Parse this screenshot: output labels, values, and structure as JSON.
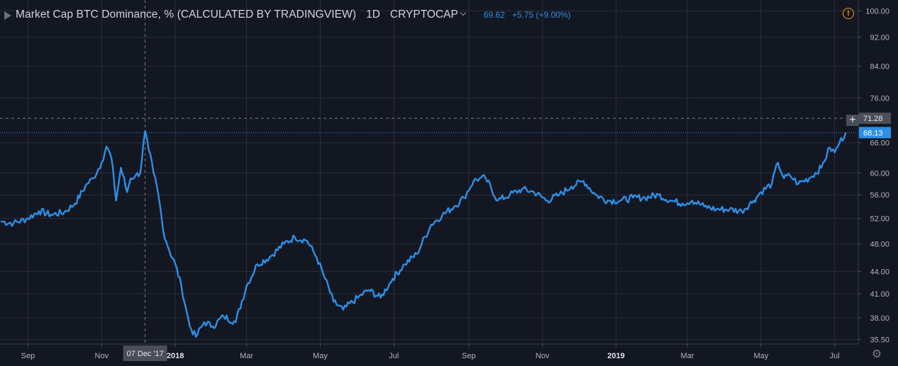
{
  "legend": {
    "title": "Market Cap BTC Dominance, % (CALCULATED BY TRADINGVIEW)",
    "interval": "1D",
    "symbol": "CRYPTOCAP",
    "value": "69.62",
    "change": "+5.75 (+9.00%)"
  },
  "crosshair": {
    "date_label": "07 Dec '17",
    "price_label": "71.28"
  },
  "last_price_label": "68.13",
  "colors": {
    "background": "#131722",
    "grid": "#2a2e39",
    "line": "#2d8fe6",
    "price_tag": "#2d8fe6",
    "crosshair_tag": "#4a4e59",
    "warning": "#f7931a"
  },
  "icons": {
    "warning": "exclamation-circle-icon",
    "add": "plus-icon",
    "settings": "gear-icon"
  },
  "chart_data": {
    "type": "line",
    "scale": "log",
    "grid": true,
    "price_ticks": [
      "100.00",
      "92.00",
      "84.00",
      "76.00",
      "66.00",
      "60.00",
      "56.00",
      "52.00",
      "48.00",
      "44.00",
      "41.00",
      "38.00",
      "35.50"
    ],
    "time_ticks": [
      {
        "label": "Sep",
        "date": "2017-09-01",
        "bold": false
      },
      {
        "label": "Nov",
        "date": "2017-11-01",
        "bold": false
      },
      {
        "label": "2018",
        "date": "2018-01-01",
        "bold": true
      },
      {
        "label": "Mar",
        "date": "2018-03-01",
        "bold": false
      },
      {
        "label": "May",
        "date": "2018-05-01",
        "bold": false
      },
      {
        "label": "Jul",
        "date": "2018-07-01",
        "bold": false
      },
      {
        "label": "Sep",
        "date": "2018-09-01",
        "bold": false
      },
      {
        "label": "Nov",
        "date": "2018-11-01",
        "bold": false
      },
      {
        "label": "2019",
        "date": "2019-01-01",
        "bold": true
      },
      {
        "label": "Mar",
        "date": "2019-03-01",
        "bold": false
      },
      {
        "label": "May",
        "date": "2019-05-01",
        "bold": false
      },
      {
        "label": "Jul",
        "date": "2019-07-01",
        "bold": false
      }
    ],
    "x": [
      "2017-08-10",
      "2017-08-20",
      "2017-09-01",
      "2017-09-10",
      "2017-09-20",
      "2017-10-01",
      "2017-10-10",
      "2017-10-20",
      "2017-10-25",
      "2017-11-01",
      "2017-11-05",
      "2017-11-09",
      "2017-11-13",
      "2017-11-17",
      "2017-11-22",
      "2017-11-25",
      "2017-11-29",
      "2017-12-03",
      "2017-12-07",
      "2017-12-10",
      "2017-12-14",
      "2017-12-18",
      "2017-12-22",
      "2017-12-27",
      "2018-01-01",
      "2018-01-06",
      "2018-01-10",
      "2018-01-13",
      "2018-01-18",
      "2018-01-25",
      "2018-02-01",
      "2018-02-10",
      "2018-02-20",
      "2018-03-01",
      "2018-03-10",
      "2018-03-20",
      "2018-04-01",
      "2018-04-10",
      "2018-04-20",
      "2018-04-28",
      "2018-05-05",
      "2018-05-12",
      "2018-05-20",
      "2018-06-01",
      "2018-06-10",
      "2018-06-20",
      "2018-06-30",
      "2018-07-10",
      "2018-07-20",
      "2018-08-01",
      "2018-08-10",
      "2018-08-20",
      "2018-08-28",
      "2018-09-05",
      "2018-09-10",
      "2018-09-15",
      "2018-09-25",
      "2018-10-05",
      "2018-10-15",
      "2018-10-25",
      "2018-11-05",
      "2018-11-15",
      "2018-11-25",
      "2018-12-05",
      "2018-12-15",
      "2018-12-25",
      "2019-01-05",
      "2019-01-15",
      "2019-01-25",
      "2019-02-05",
      "2019-02-15",
      "2019-02-25",
      "2019-03-05",
      "2019-03-15",
      "2019-03-25",
      "2019-04-05",
      "2019-04-15",
      "2019-04-25",
      "2019-05-01",
      "2019-05-10",
      "2019-05-15",
      "2019-05-20",
      "2019-05-25",
      "2019-06-01",
      "2019-06-10",
      "2019-06-20",
      "2019-06-27",
      "2019-07-01",
      "2019-07-05",
      "2019-07-10"
    ],
    "y": [
      51.5,
      51.2,
      52.0,
      53.2,
      52.6,
      53.0,
      54.5,
      58.0,
      59.0,
      62.0,
      65.2,
      63.0,
      55.0,
      61.0,
      56.5,
      59.0,
      59.5,
      60.0,
      68.5,
      64.5,
      60.0,
      56.0,
      50.0,
      47.0,
      45.0,
      42.0,
      39.0,
      37.0,
      35.8,
      37.5,
      37.0,
      38.2,
      37.5,
      42.0,
      45.0,
      46.0,
      48.0,
      49.0,
      48.5,
      46.0,
      43.0,
      40.0,
      39.0,
      40.5,
      41.5,
      40.5,
      43.0,
      45.0,
      46.5,
      51.0,
      52.5,
      54.0,
      55.5,
      58.5,
      59.0,
      59.0,
      55.0,
      56.0,
      57.0,
      56.5,
      55.0,
      56.0,
      57.5,
      58.5,
      56.0,
      55.0,
      55.0,
      55.5,
      55.5,
      56.0,
      55.0,
      54.5,
      55.0,
      54.0,
      53.5,
      53.5,
      53.2,
      55.0,
      56.5,
      58.0,
      62.0,
      59.0,
      59.5,
      58.0,
      59.0,
      61.0,
      65.0,
      64.0,
      66.0,
      68.0
    ],
    "ylim": [
      35.0,
      103.0
    ]
  }
}
